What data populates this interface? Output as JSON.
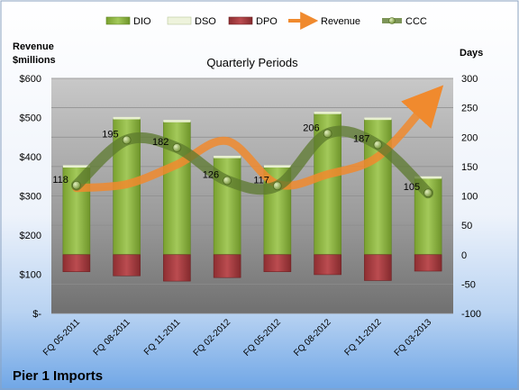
{
  "chart_data": {
    "type": "bar",
    "title": "Quarterly Periods",
    "company": "Pier 1 Imports",
    "left_axis_title": [
      "Revenue",
      "$millions"
    ],
    "right_axis_title": "Days",
    "left_ticks": [
      "$600",
      "$500",
      "$400",
      "$300",
      "$200",
      "$100",
      "$-"
    ],
    "right_ticks": [
      "300",
      "250",
      "200",
      "150",
      "100",
      "50",
      "0",
      "-50",
      "-100"
    ],
    "left_range": [
      0,
      600
    ],
    "right_range": [
      -100,
      300
    ],
    "legend_position": "top",
    "categories": [
      "FQ 05-2011",
      "FQ 08-2011",
      "FQ 11-2011",
      "FQ 02-2012",
      "FQ 05-2012",
      "FQ 08-2012",
      "FQ 11-2012",
      "FQ 03-2013"
    ],
    "series": [
      {
        "name": "DIO",
        "axis": "days",
        "color": "#8db43e",
        "values": [
          149,
          231,
          226,
          165,
          149,
          240,
          230,
          130
        ]
      },
      {
        "name": "DSO",
        "axis": "days",
        "color": "#e8f0d0",
        "values": [
          1,
          1,
          1,
          1,
          1,
          1,
          1,
          1
        ]
      },
      {
        "name": "DPO",
        "axis": "days",
        "color": "#a33d40",
        "values": [
          -29,
          -36,
          -45,
          -39,
          -29,
          -34,
          -44,
          -28
        ]
      },
      {
        "name": "Revenue",
        "axis": "revenue",
        "color": "#f08a2e",
        "values": [
          320,
          330,
          380,
          440,
          330,
          355,
          400,
          540
        ]
      },
      {
        "name": "CCC",
        "axis": "days",
        "color": "#5c7a2e",
        "values": [
          118,
          195,
          182,
          126,
          117,
          206,
          187,
          105
        ]
      }
    ],
    "ccc_labels": [
      "118",
      "195",
      "182",
      "126",
      "117",
      "206",
      "187",
      "105"
    ]
  }
}
